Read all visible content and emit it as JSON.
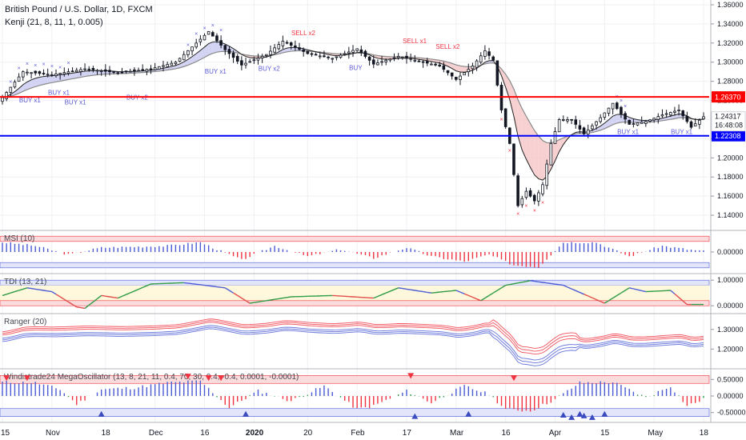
{
  "header": {
    "symbol_title": "British Pound / U.S. Dollar, 1D, FXCM",
    "indicator_title": "Kenji (21, 8, 11, 1, 0.005)"
  },
  "colors": {
    "background": "#ffffff",
    "grid": "#eef0f3",
    "candle": "#131722",
    "resistance": "#ff0000",
    "support": "#0000ff",
    "buy_signal": "#5b5bd6",
    "sell_signal": "#ef3340",
    "fast_ma": "#222222",
    "slow_ma": "#8a8a8a",
    "bull_fill": "#c8c8f0",
    "bear_fill": "#f5c6c6"
  },
  "time_axis": {
    "labels": [
      "15",
      "Nov",
      "18",
      "Dec",
      "16",
      "2020",
      "20",
      "Feb",
      "17",
      "Mar",
      "16",
      "Apr",
      "15",
      "May",
      "18"
    ]
  },
  "main_panel": {
    "ylim": [
      1.125,
      1.365
    ],
    "ticks": [
      {
        "v": 1.36,
        "label": "1.36000"
      },
      {
        "v": 1.34,
        "label": "1.34000"
      },
      {
        "v": 1.32,
        "label": "1.32000"
      },
      {
        "v": 1.3,
        "label": "1.30000"
      },
      {
        "v": 1.28,
        "label": "1.28000"
      },
      {
        "v": 1.26,
        "label": "1.26000"
      },
      {
        "v": 1.24,
        "label": "1.24000"
      },
      {
        "v": 1.22,
        "label": "1.22000"
      },
      {
        "v": 1.2,
        "label": "1.20000"
      },
      {
        "v": 1.18,
        "label": "1.18000"
      },
      {
        "v": 1.16,
        "label": "1.16000"
      },
      {
        "v": 1.14,
        "label": "1.14000"
      }
    ],
    "resistance_level": {
      "value": 1.2637,
      "label": "1.26370"
    },
    "support_level": {
      "value": 1.22308,
      "label": "1.22308"
    },
    "last_price": {
      "value": 1.24317,
      "label": "1.24317"
    },
    "countdown": "16:48:08"
  },
  "chart_data": [
    {
      "type": "candlestick",
      "title": "British Pound / U.S. Dollar, 1D, FXCM",
      "ylim": [
        1.125,
        1.365
      ],
      "anchors": [
        {
          "t": 0,
          "c": 1.263
        },
        {
          "t": 5,
          "c": 1.29
        },
        {
          "t": 12,
          "c": 1.287
        },
        {
          "t": 20,
          "c": 1.293
        },
        {
          "t": 28,
          "c": 1.289
        },
        {
          "t": 36,
          "c": 1.293
        },
        {
          "t": 42,
          "c": 1.3
        },
        {
          "t": 46,
          "c": 1.316
        },
        {
          "t": 50,
          "c": 1.332
        },
        {
          "t": 54,
          "c": 1.313
        },
        {
          "t": 58,
          "c": 1.297
        },
        {
          "t": 64,
          "c": 1.308
        },
        {
          "t": 68,
          "c": 1.322
        },
        {
          "t": 74,
          "c": 1.309
        },
        {
          "t": 80,
          "c": 1.304
        },
        {
          "t": 86,
          "c": 1.314
        },
        {
          "t": 90,
          "c": 1.298
        },
        {
          "t": 96,
          "c": 1.306
        },
        {
          "t": 100,
          "c": 1.302
        },
        {
          "t": 106,
          "c": 1.296
        },
        {
          "t": 110,
          "c": 1.282
        },
        {
          "t": 114,
          "c": 1.296
        },
        {
          "t": 117,
          "c": 1.312
        },
        {
          "t": 119,
          "c": 1.302
        },
        {
          "t": 121,
          "c": 1.25
        },
        {
          "t": 123,
          "c": 1.215
        },
        {
          "t": 125,
          "c": 1.15
        },
        {
          "t": 127,
          "c": 1.165
        },
        {
          "t": 129,
          "c": 1.155
        },
        {
          "t": 131,
          "c": 1.172
        },
        {
          "t": 133,
          "c": 1.215
        },
        {
          "t": 135,
          "c": 1.24
        },
        {
          "t": 138,
          "c": 1.24
        },
        {
          "t": 141,
          "c": 1.225
        },
        {
          "t": 145,
          "c": 1.242
        },
        {
          "t": 148,
          "c": 1.257
        },
        {
          "t": 152,
          "c": 1.235
        },
        {
          "t": 156,
          "c": 1.238
        },
        {
          "t": 160,
          "c": 1.245
        },
        {
          "t": 164,
          "c": 1.25
        },
        {
          "t": 167,
          "c": 1.232
        },
        {
          "t": 170,
          "c": 1.243
        }
      ],
      "signals": [
        {
          "t": 6,
          "label": "BUY x1",
          "kind": "buy",
          "price": 1.258
        },
        {
          "t": 13,
          "label": "BUY x1",
          "kind": "buy",
          "price": 1.266
        },
        {
          "t": 17,
          "label": "BUY x1",
          "kind": "buy",
          "price": 1.256
        },
        {
          "t": 32,
          "label": "BUY x2",
          "kind": "buy",
          "price": 1.261
        },
        {
          "t": 51,
          "label": "BUY x1",
          "kind": "buy",
          "price": 1.288
        },
        {
          "t": 64,
          "label": "BUY x2",
          "kind": "buy",
          "price": 1.291
        },
        {
          "t": 72,
          "label": "SELL x2",
          "kind": "sell",
          "price": 1.328
        },
        {
          "t": 86,
          "label": "BUY",
          "kind": "buy",
          "price": 1.292
        },
        {
          "t": 99,
          "label": "SELL x1",
          "kind": "sell",
          "price": 1.32
        },
        {
          "t": 107,
          "label": "SELL x2",
          "kind": "sell",
          "price": 1.314
        },
        {
          "t": 151,
          "label": "BUY x1",
          "kind": "buy",
          "price": 1.225
        },
        {
          "t": 164,
          "label": "BUY x1",
          "kind": "buy",
          "price": 1.225
        }
      ]
    },
    {
      "type": "bar",
      "title": "MSI (10)",
      "ylim": [
        -1,
        1
      ],
      "ticks": [
        {
          "v": 0,
          "label": "0.00000"
        }
      ],
      "anchors": [
        {
          "t": 0,
          "v": 0.55
        },
        {
          "t": 8,
          "v": 0.35
        },
        {
          "t": 16,
          "v": -0.15
        },
        {
          "t": 24,
          "v": 0.25
        },
        {
          "t": 32,
          "v": 0.3
        },
        {
          "t": 40,
          "v": 0.35
        },
        {
          "t": 48,
          "v": 0.55
        },
        {
          "t": 58,
          "v": -0.45
        },
        {
          "t": 66,
          "v": 0.35
        },
        {
          "t": 74,
          "v": -0.25
        },
        {
          "t": 82,
          "v": 0.15
        },
        {
          "t": 90,
          "v": -0.35
        },
        {
          "t": 98,
          "v": 0.25
        },
        {
          "t": 104,
          "v": -0.25
        },
        {
          "t": 112,
          "v": -0.55
        },
        {
          "t": 118,
          "v": -0.15
        },
        {
          "t": 124,
          "v": -0.75
        },
        {
          "t": 130,
          "v": -0.85
        },
        {
          "t": 136,
          "v": 0.55
        },
        {
          "t": 144,
          "v": 0.55
        },
        {
          "t": 152,
          "v": -0.25
        },
        {
          "t": 160,
          "v": 0.35
        },
        {
          "t": 166,
          "v": 0.15
        },
        {
          "t": 170,
          "v": 0.05
        }
      ]
    },
    {
      "type": "line",
      "title": "TDI (13, 21)",
      "ylim": [
        -0.15,
        1.1
      ],
      "ticks": [
        {
          "v": 1.0,
          "label": "1.00000"
        },
        {
          "v": 0.0,
          "label": "0.00000"
        }
      ],
      "anchors": [
        {
          "t": 0,
          "v": 0.4
        },
        {
          "t": 6,
          "v": 0.7
        },
        {
          "t": 12,
          "v": 0.55
        },
        {
          "t": 18,
          "v": -0.05
        },
        {
          "t": 20,
          "v": -0.1
        },
        {
          "t": 24,
          "v": 0.4
        },
        {
          "t": 28,
          "v": 0.3
        },
        {
          "t": 36,
          "v": 0.85
        },
        {
          "t": 44,
          "v": 0.9
        },
        {
          "t": 54,
          "v": 0.7
        },
        {
          "t": 60,
          "v": 0.1
        },
        {
          "t": 70,
          "v": 0.35
        },
        {
          "t": 80,
          "v": 0.4
        },
        {
          "t": 90,
          "v": 0.3
        },
        {
          "t": 96,
          "v": 0.7
        },
        {
          "t": 104,
          "v": 0.5
        },
        {
          "t": 110,
          "v": 0.6
        },
        {
          "t": 116,
          "v": 0.2
        },
        {
          "t": 122,
          "v": 0.8
        },
        {
          "t": 128,
          "v": 0.98
        },
        {
          "t": 136,
          "v": 0.8
        },
        {
          "t": 146,
          "v": 0.1
        },
        {
          "t": 152,
          "v": 0.7
        },
        {
          "t": 156,
          "v": 0.55
        },
        {
          "t": 162,
          "v": 0.6
        },
        {
          "t": 166,
          "v": 0.05
        },
        {
          "t": 170,
          "v": 0.05
        }
      ]
    },
    {
      "type": "line",
      "title": "Ranger (20)",
      "ylim": [
        1.12,
        1.36
      ],
      "ticks": [
        {
          "v": 1.3,
          "label": "1.30000"
        },
        {
          "v": 1.2,
          "label": "1.20000"
        }
      ],
      "series": [
        {
          "offset": 0.045,
          "color": "#ef3340"
        },
        {
          "offset": 0.03,
          "color": "#ef3340"
        },
        {
          "offset": 0.015,
          "color": "#ef3340"
        },
        {
          "offset": -0.015,
          "color": "#4a5bd4"
        },
        {
          "offset": -0.03,
          "color": "#4a5bd4"
        },
        {
          "offset": -0.045,
          "color": "#4a5bd4"
        }
      ]
    },
    {
      "type": "bar",
      "title": "Windistrade24 MegaOscillator (13, 8, 21, 11, 0.4, 70, 30, 0.4, -0.4, 0.0001, -0.0001)",
      "ylim": [
        -0.7,
        0.7
      ],
      "ticks": [
        {
          "v": 0.5,
          "label": "0.50000"
        },
        {
          "v": 0.0,
          "label": "0.00000"
        },
        {
          "v": -0.5,
          "label": "-0.50000"
        }
      ],
      "anchors": [
        {
          "t": 0,
          "v": 0.42
        },
        {
          "t": 8,
          "v": 0.4
        },
        {
          "t": 14,
          "v": 0.2
        },
        {
          "t": 18,
          "v": -0.25
        },
        {
          "t": 24,
          "v": 0.2
        },
        {
          "t": 32,
          "v": 0.25
        },
        {
          "t": 40,
          "v": 0.4
        },
        {
          "t": 48,
          "v": 0.45
        },
        {
          "t": 55,
          "v": -0.35
        },
        {
          "t": 62,
          "v": 0.15
        },
        {
          "t": 70,
          "v": -0.15
        },
        {
          "t": 78,
          "v": 0.3
        },
        {
          "t": 86,
          "v": -0.4
        },
        {
          "t": 90,
          "v": -0.3
        },
        {
          "t": 98,
          "v": 0.15
        },
        {
          "t": 104,
          "v": -0.2
        },
        {
          "t": 112,
          "v": 0.3
        },
        {
          "t": 118,
          "v": 0.05
        },
        {
          "t": 122,
          "v": -0.4
        },
        {
          "t": 128,
          "v": -0.45
        },
        {
          "t": 134,
          "v": -0.1
        },
        {
          "t": 140,
          "v": 0.4
        },
        {
          "t": 148,
          "v": 0.42
        },
        {
          "t": 156,
          "v": -0.05
        },
        {
          "t": 162,
          "v": 0.3
        },
        {
          "t": 166,
          "v": -0.3
        },
        {
          "t": 170,
          "v": -0.1
        }
      ],
      "markers": [
        {
          "t": 1,
          "kind": "sell",
          "v": 0.55
        },
        {
          "t": 6,
          "kind": "sell",
          "v": 0.55
        },
        {
          "t": 24,
          "kind": "buy",
          "v": -0.55
        },
        {
          "t": 45,
          "kind": "sell",
          "v": 0.6
        },
        {
          "t": 50,
          "kind": "sell",
          "v": 0.55
        },
        {
          "t": 53,
          "kind": "sell",
          "v": 0.55
        },
        {
          "t": 59,
          "kind": "buy",
          "v": -0.55
        },
        {
          "t": 99,
          "kind": "sell",
          "v": 0.62
        },
        {
          "t": 100,
          "kind": "buy",
          "v": -0.62
        },
        {
          "t": 113,
          "kind": "buy",
          "v": -0.55
        },
        {
          "t": 124,
          "kind": "sell",
          "v": 0.55
        },
        {
          "t": 136,
          "kind": "buy",
          "v": -0.58
        },
        {
          "t": 138,
          "kind": "buy",
          "v": -0.65
        },
        {
          "t": 140,
          "kind": "buy",
          "v": -0.55
        },
        {
          "t": 141,
          "kind": "buy",
          "v": -0.6
        },
        {
          "t": 143,
          "kind": "buy",
          "v": -0.65
        },
        {
          "t": 146,
          "kind": "buy",
          "v": -0.55
        }
      ]
    }
  ]
}
